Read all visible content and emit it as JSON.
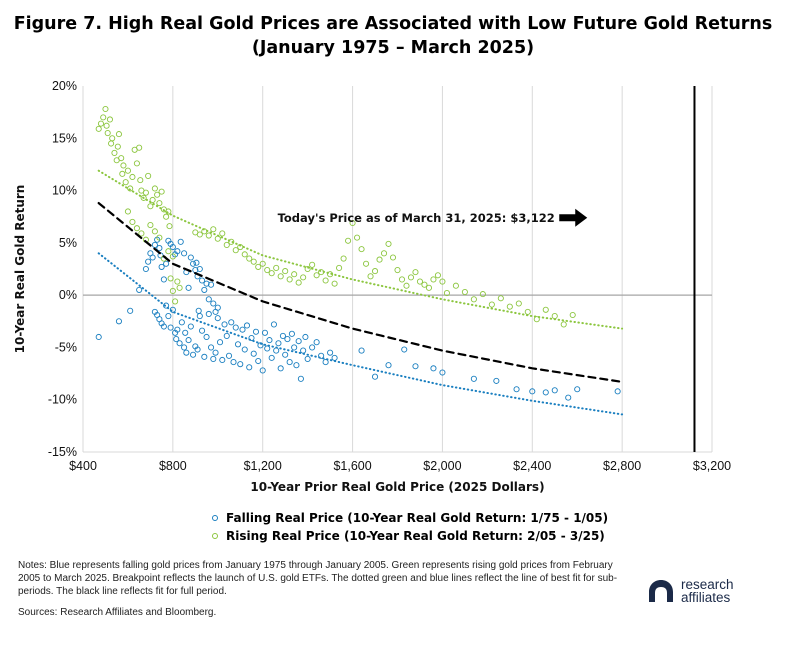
{
  "title": {
    "line1": "Figure 7. High Real Gold Prices are Associated with Low Future Gold Returns",
    "line2": "(January 1975 – March 2025)"
  },
  "legend": {
    "falling": "Falling Real Price (10-Year Real Gold Return: 1/75 - 1/05)",
    "rising": "Rising Real Price (10-Year Real Gold Return: 2/05 - 3/25)"
  },
  "notes": "Notes: Blue represents falling gold prices from January 1975 through January 2005. Green represents rising gold prices from February 2005 to March 2025. Breakpoint reflects the launch of U.S. gold ETFs. The dotted green and blue lines reflect the line of best fit for sub-periods. The black line reflects fit for full period.",
  "sources": "Sources: Research Affiliates and Bloomberg.",
  "logo": {
    "line1": "research",
    "line2": "affiliates"
  },
  "colors": {
    "falling": "#1a7fc0",
    "rising": "#8cc63f",
    "fit_all": "#000000",
    "grid": "#d9d9d9",
    "zero_line": "#a6a6a6"
  },
  "chart_data": {
    "type": "scatter",
    "xlabel": "10-Year Prior Real Gold Price (2025 Dollars)",
    "ylabel": "10-Year Real Gold Return",
    "xlim": [
      400,
      3200
    ],
    "ylim": [
      -15,
      20
    ],
    "x_ticks": [
      400,
      800,
      1200,
      1600,
      2000,
      2400,
      2800,
      3200
    ],
    "x_tick_labels": [
      "$400",
      "$800",
      "$1,200",
      "$1,600",
      "$2,000",
      "$2,400",
      "$2,800",
      "$3,200"
    ],
    "y_ticks": [
      -15,
      -10,
      -5,
      0,
      5,
      10,
      15,
      20
    ],
    "y_tick_labels": [
      "-15%",
      "-10%",
      "-5%",
      "0%",
      "5%",
      "10%",
      "15%",
      "20%"
    ],
    "grid": "vertical",
    "annotation": {
      "text": "Today's Price as of March 31, 2025: $3,122",
      "x": 3122,
      "y": 7.4
    },
    "today_line_x": 3122,
    "series": [
      {
        "name": "Falling Real Price (10-Year Real Gold Return: 1/75 - 1/05)",
        "color": "#1a7fc0",
        "points": [
          [
            470,
            -4.0
          ],
          [
            560,
            -2.5
          ],
          [
            610,
            -1.5
          ],
          [
            650,
            0.5
          ],
          [
            680,
            2.5
          ],
          [
            690,
            3.2
          ],
          [
            700,
            4.0
          ],
          [
            710,
            3.6
          ],
          [
            720,
            4.8
          ],
          [
            730,
            5.3
          ],
          [
            740,
            4.5
          ],
          [
            745,
            3.8
          ],
          [
            750,
            2.7
          ],
          [
            760,
            1.5
          ],
          [
            770,
            3.0
          ],
          [
            780,
            5.2
          ],
          [
            790,
            4.9
          ],
          [
            800,
            4.6
          ],
          [
            810,
            3.9
          ],
          [
            820,
            4.2
          ],
          [
            835,
            5.1
          ],
          [
            850,
            4.0
          ],
          [
            860,
            2.2
          ],
          [
            870,
            0.7
          ],
          [
            880,
            3.6
          ],
          [
            890,
            3.0
          ],
          [
            900,
            2.4
          ],
          [
            905,
            3.1
          ],
          [
            910,
            1.8
          ],
          [
            920,
            2.5
          ],
          [
            930,
            1.4
          ],
          [
            940,
            0.5
          ],
          [
            950,
            1.1
          ],
          [
            960,
            -0.4
          ],
          [
            970,
            1.0
          ],
          [
            980,
            -0.8
          ],
          [
            990,
            -1.6
          ],
          [
            1000,
            -1.2
          ],
          [
            720,
            -1.6
          ],
          [
            730,
            -1.9
          ],
          [
            740,
            -2.3
          ],
          [
            750,
            -2.7
          ],
          [
            760,
            -3.0
          ],
          [
            770,
            -1.0
          ],
          [
            780,
            -2.0
          ],
          [
            790,
            -3.1
          ],
          [
            800,
            -1.4
          ],
          [
            810,
            -3.6
          ],
          [
            815,
            -4.2
          ],
          [
            820,
            -3.3
          ],
          [
            830,
            -4.6
          ],
          [
            840,
            -2.6
          ],
          [
            850,
            -5.0
          ],
          [
            855,
            -3.6
          ],
          [
            860,
            -5.5
          ],
          [
            870,
            -4.3
          ],
          [
            880,
            -3.0
          ],
          [
            890,
            -5.7
          ],
          [
            900,
            -4.9
          ],
          [
            910,
            -5.2
          ],
          [
            915,
            -1.5
          ],
          [
            920,
            -2.0
          ],
          [
            930,
            -3.4
          ],
          [
            940,
            -5.9
          ],
          [
            950,
            -4.0
          ],
          [
            960,
            -1.8
          ],
          [
            970,
            -5.0
          ],
          [
            980,
            -6.1
          ],
          [
            990,
            -5.5
          ],
          [
            1000,
            -2.2
          ],
          [
            1010,
            -4.5
          ],
          [
            1020,
            -6.2
          ],
          [
            1030,
            -2.8
          ],
          [
            1040,
            -3.9
          ],
          [
            1050,
            -5.8
          ],
          [
            1060,
            -2.6
          ],
          [
            1070,
            -6.4
          ],
          [
            1080,
            -3.1
          ],
          [
            1090,
            -4.7
          ],
          [
            1100,
            -6.6
          ],
          [
            1110,
            -3.3
          ],
          [
            1120,
            -5.2
          ],
          [
            1130,
            -2.9
          ],
          [
            1140,
            -6.9
          ],
          [
            1150,
            -4.1
          ],
          [
            1160,
            -5.6
          ],
          [
            1170,
            -3.5
          ],
          [
            1180,
            -6.3
          ],
          [
            1190,
            -4.8
          ],
          [
            1200,
            -7.2
          ],
          [
            1210,
            -3.6
          ],
          [
            1220,
            -5.1
          ],
          [
            1230,
            -4.3
          ],
          [
            1240,
            -6.0
          ],
          [
            1250,
            -2.8
          ],
          [
            1260,
            -5.3
          ],
          [
            1270,
            -4.6
          ],
          [
            1280,
            -7.0
          ],
          [
            1290,
            -3.9
          ],
          [
            1300,
            -5.7
          ],
          [
            1310,
            -4.2
          ],
          [
            1320,
            -6.4
          ],
          [
            1330,
            -3.7
          ],
          [
            1340,
            -5.0
          ],
          [
            1350,
            -6.7
          ],
          [
            1360,
            -4.4
          ],
          [
            1370,
            -8.0
          ],
          [
            1380,
            -5.3
          ],
          [
            1390,
            -4.0
          ],
          [
            1400,
            -6.1
          ],
          [
            1420,
            -5.0
          ],
          [
            1440,
            -4.5
          ],
          [
            1460,
            -5.8
          ],
          [
            1480,
            -6.4
          ],
          [
            1500,
            -5.5
          ],
          [
            1520,
            -6.0
          ],
          [
            1640,
            -5.3
          ],
          [
            1700,
            -7.8
          ],
          [
            1760,
            -6.7
          ],
          [
            1830,
            -5.2
          ],
          [
            1880,
            -6.8
          ],
          [
            1960,
            -7.0
          ],
          [
            2000,
            -7.4
          ],
          [
            2140,
            -8.0
          ],
          [
            2240,
            -8.2
          ],
          [
            2330,
            -9.0
          ],
          [
            2400,
            -9.2
          ],
          [
            2460,
            -9.3
          ],
          [
            2500,
            -9.1
          ],
          [
            2560,
            -9.8
          ],
          [
            2600,
            -9.0
          ],
          [
            2780,
            -9.2
          ]
        ]
      },
      {
        "name": "Rising Real Price (10-Year Real Gold Return: 2/05 - 3/25)",
        "color": "#8cc63f",
        "points": [
          [
            470,
            15.9
          ],
          [
            480,
            16.4
          ],
          [
            490,
            17.0
          ],
          [
            500,
            17.8
          ],
          [
            505,
            16.2
          ],
          [
            510,
            15.5
          ],
          [
            520,
            16.8
          ],
          [
            525,
            14.5
          ],
          [
            530,
            15.0
          ],
          [
            540,
            13.6
          ],
          [
            550,
            12.9
          ],
          [
            555,
            14.2
          ],
          [
            560,
            15.4
          ],
          [
            570,
            13.1
          ],
          [
            575,
            11.6
          ],
          [
            580,
            12.4
          ],
          [
            590,
            10.8
          ],
          [
            600,
            11.9
          ],
          [
            610,
            10.2
          ],
          [
            620,
            11.3
          ],
          [
            630,
            13.9
          ],
          [
            640,
            12.6
          ],
          [
            650,
            14.1
          ],
          [
            655,
            11.0
          ],
          [
            660,
            10.0
          ],
          [
            670,
            9.3
          ],
          [
            680,
            9.8
          ],
          [
            690,
            11.4
          ],
          [
            700,
            8.5
          ],
          [
            710,
            9.1
          ],
          [
            720,
            10.2
          ],
          [
            730,
            9.6
          ],
          [
            740,
            8.8
          ],
          [
            750,
            9.9
          ],
          [
            760,
            8.2
          ],
          [
            770,
            7.5
          ],
          [
            780,
            8.0
          ],
          [
            785,
            6.6
          ],
          [
            790,
            1.6
          ],
          [
            800,
            0.4
          ],
          [
            810,
            -0.6
          ],
          [
            820,
            1.3
          ],
          [
            830,
            0.7
          ],
          [
            600,
            8.0
          ],
          [
            620,
            7.0
          ],
          [
            640,
            6.4
          ],
          [
            660,
            5.9
          ],
          [
            680,
            5.3
          ],
          [
            700,
            6.7
          ],
          [
            720,
            6.1
          ],
          [
            740,
            5.5
          ],
          [
            760,
            3.5
          ],
          [
            780,
            4.2
          ],
          [
            800,
            3.7
          ],
          [
            900,
            6.0
          ],
          [
            920,
            5.8
          ],
          [
            940,
            6.1
          ],
          [
            960,
            5.7
          ],
          [
            980,
            6.3
          ],
          [
            1000,
            5.4
          ],
          [
            1020,
            5.9
          ],
          [
            1040,
            4.8
          ],
          [
            1060,
            5.1
          ],
          [
            1080,
            4.3
          ],
          [
            1100,
            4.6
          ],
          [
            1120,
            3.9
          ],
          [
            1140,
            3.5
          ],
          [
            1160,
            3.2
          ],
          [
            1180,
            2.7
          ],
          [
            1200,
            3.0
          ],
          [
            1220,
            2.4
          ],
          [
            1240,
            2.1
          ],
          [
            1260,
            2.6
          ],
          [
            1280,
            1.8
          ],
          [
            1300,
            2.3
          ],
          [
            1320,
            1.5
          ],
          [
            1340,
            2.0
          ],
          [
            1360,
            1.2
          ],
          [
            1380,
            1.7
          ],
          [
            1400,
            2.5
          ],
          [
            1420,
            2.9
          ],
          [
            1440,
            1.9
          ],
          [
            1460,
            2.2
          ],
          [
            1480,
            1.4
          ],
          [
            1500,
            2.0
          ],
          [
            1520,
            1.1
          ],
          [
            1540,
            2.6
          ],
          [
            1560,
            3.5
          ],
          [
            1580,
            5.2
          ],
          [
            1600,
            6.9
          ],
          [
            1620,
            5.5
          ],
          [
            1640,
            4.4
          ],
          [
            1660,
            3.0
          ],
          [
            1680,
            1.8
          ],
          [
            1700,
            2.3
          ],
          [
            1720,
            3.4
          ],
          [
            1740,
            4.0
          ],
          [
            1760,
            4.9
          ],
          [
            1780,
            3.6
          ],
          [
            1800,
            2.4
          ],
          [
            1820,
            1.5
          ],
          [
            1840,
            0.9
          ],
          [
            1860,
            1.7
          ],
          [
            1880,
            2.2
          ],
          [
            1900,
            1.3
          ],
          [
            1920,
            1.0
          ],
          [
            1940,
            0.7
          ],
          [
            1960,
            1.5
          ],
          [
            1980,
            1.9
          ],
          [
            2000,
            1.3
          ],
          [
            2020,
            0.2
          ],
          [
            2060,
            0.9
          ],
          [
            2100,
            0.3
          ],
          [
            2140,
            -0.4
          ],
          [
            2180,
            0.1
          ],
          [
            2220,
            -0.9
          ],
          [
            2260,
            -0.3
          ],
          [
            2300,
            -1.1
          ],
          [
            2340,
            -0.8
          ],
          [
            2380,
            -1.6
          ],
          [
            2420,
            -2.3
          ],
          [
            2460,
            -1.4
          ],
          [
            2500,
            -2.0
          ],
          [
            2540,
            -2.8
          ],
          [
            2580,
            -1.9
          ]
        ]
      }
    ],
    "fit_lines": [
      {
        "series": "Falling",
        "color": "#1a7fc0",
        "style": "dotted",
        "x": [
          470,
          800,
          1200,
          1600,
          2000,
          2400,
          2800
        ],
        "y": [
          4.0,
          -1.6,
          -4.7,
          -6.7,
          -8.6,
          -10.1,
          -11.4
        ]
      },
      {
        "series": "Rising",
        "color": "#8cc63f",
        "style": "dotted",
        "x": [
          470,
          800,
          1200,
          1600,
          2000,
          2400,
          2800
        ],
        "y": [
          11.9,
          7.6,
          3.8,
          1.5,
          -0.4,
          -2.0,
          -3.2
        ]
      },
      {
        "series": "Full period",
        "color": "#000000",
        "style": "dashed",
        "x": [
          470,
          800,
          1200,
          1600,
          2000,
          2400,
          2800
        ],
        "y": [
          8.8,
          3.0,
          -0.6,
          -3.2,
          -5.3,
          -7.0,
          -8.3
        ]
      }
    ]
  }
}
